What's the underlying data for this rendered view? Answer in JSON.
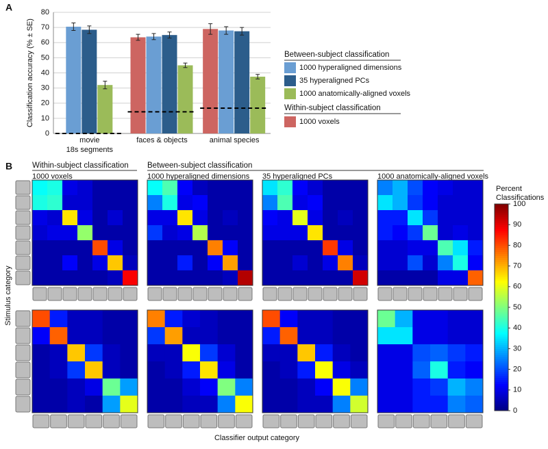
{
  "chart_data": [
    {
      "type": "bar",
      "panel_label": "A",
      "categories": [
        [
          "movie",
          "18s segments"
        ],
        [
          "faces & objects"
        ],
        [
          "animal species"
        ]
      ],
      "ylabel": "Classification accuracy (% ± SE)",
      "ylim": [
        0,
        80
      ],
      "yticks": [
        0,
        10,
        20,
        30,
        40,
        50,
        60,
        70,
        80
      ],
      "legend_titles": [
        "Between-subject classification",
        "Within-subject classification"
      ],
      "series": [
        {
          "name": "1000 voxels",
          "color": "#cd6561",
          "values": [
            null,
            63.5,
            69
          ],
          "errors": [
            null,
            2,
            3.5
          ]
        },
        {
          "name": "1000 hyperaligned dimensions",
          "color": "#6a9ed3",
          "values": [
            70.5,
            64,
            68
          ],
          "errors": [
            2.5,
            2,
            2.5
          ]
        },
        {
          "name": "35 hyperaligned PCs",
          "color": "#2c5d8b",
          "values": [
            68.5,
            65,
            67.5
          ],
          "errors": [
            2.5,
            2,
            2.5
          ]
        },
        {
          "name": "1000 anatomically-aligned voxels",
          "color": "#9bbb59",
          "values": [
            32,
            45,
            37.5
          ],
          "errors": [
            2.5,
            1.5,
            1.5
          ]
        }
      ],
      "chance": [
        0,
        14.3,
        16.7
      ]
    },
    {
      "type": "heatmap",
      "panel_label": "B",
      "colormap": "jet",
      "group_titles": [
        "Within-subject classification",
        "Between-subject classification"
      ],
      "panel_titles": [
        "1000 voxels",
        "1000 hyperaligned dimensions",
        "35 hyperaligned PCs",
        "1000 anatomically-aligned voxels"
      ],
      "xlabel": "Classifier output category",
      "ylabel": "Stimulus category",
      "colorbar": {
        "title": [
          "Percent",
          "Classifications"
        ],
        "lim": [
          0,
          100
        ],
        "ticks": [
          0,
          10,
          20,
          30,
          40,
          50,
          60,
          70,
          80,
          90,
          100
        ]
      },
      "matrices": [
        [
          [
            [
              38,
              40,
              10,
              8,
              4,
              4,
              4
            ],
            [
              40,
              42,
              8,
              8,
              4,
              4,
              4
            ],
            [
              10,
              8,
              65,
              10,
              4,
              8,
              4
            ],
            [
              8,
              10,
              10,
              52,
              4,
              4,
              4
            ],
            [
              4,
              4,
              4,
              4,
              80,
              10,
              4
            ],
            [
              4,
              4,
              12,
              4,
              10,
              68,
              6
            ],
            [
              4,
              4,
              4,
              4,
              4,
              6,
              88
            ]
          ],
          [
            [
              38,
              45,
              12,
              6,
              4,
              4,
              4
            ],
            [
              25,
              40,
              10,
              12,
              4,
              4,
              4
            ],
            [
              10,
              10,
              65,
              10,
              4,
              6,
              4
            ],
            [
              18,
              8,
              10,
              55,
              4,
              4,
              4
            ],
            [
              4,
              4,
              4,
              4,
              75,
              12,
              4
            ],
            [
              4,
              4,
              15,
              4,
              12,
              72,
              4
            ],
            [
              4,
              4,
              4,
              4,
              4,
              6,
              95
            ]
          ],
          [
            [
              35,
              42,
              12,
              8,
              4,
              4,
              4
            ],
            [
              25,
              45,
              10,
              12,
              4,
              4,
              4
            ],
            [
              12,
              10,
              60,
              10,
              4,
              6,
              4
            ],
            [
              10,
              10,
              10,
              65,
              4,
              4,
              4
            ],
            [
              4,
              4,
              4,
              4,
              82,
              10,
              4
            ],
            [
              4,
              4,
              8,
              4,
              10,
              75,
              6
            ],
            [
              4,
              4,
              4,
              4,
              4,
              4,
              92
            ]
          ],
          [
            [
              25,
              30,
              20,
              12,
              10,
              8,
              8
            ],
            [
              35,
              30,
              18,
              12,
              8,
              8,
              8
            ],
            [
              15,
              15,
              35,
              18,
              8,
              8,
              8
            ],
            [
              15,
              12,
              18,
              48,
              8,
              10,
              8
            ],
            [
              8,
              8,
              10,
              10,
              45,
              35,
              15
            ],
            [
              8,
              8,
              20,
              8,
              25,
              40,
              12
            ],
            [
              4,
              4,
              4,
              4,
              10,
              10,
              78
            ]
          ]
        ],
        [
          [
            [
              80,
              15,
              6,
              6,
              4,
              4
            ],
            [
              12,
              78,
              6,
              6,
              4,
              4
            ],
            [
              4,
              6,
              68,
              18,
              6,
              4
            ],
            [
              4,
              6,
              18,
              68,
              6,
              4
            ],
            [
              4,
              4,
              6,
              10,
              48,
              28
            ],
            [
              4,
              4,
              6,
              4,
              28,
              60
            ]
          ],
          [
            [
              75,
              15,
              8,
              6,
              4,
              4
            ],
            [
              18,
              72,
              6,
              6,
              4,
              4
            ],
            [
              6,
              6,
              62,
              18,
              8,
              4
            ],
            [
              4,
              6,
              15,
              65,
              10,
              4
            ],
            [
              4,
              4,
              8,
              12,
              50,
              25
            ],
            [
              4,
              4,
              6,
              6,
              25,
              62
            ]
          ],
          [
            [
              80,
              12,
              6,
              6,
              4,
              4
            ],
            [
              15,
              78,
              6,
              6,
              4,
              4
            ],
            [
              6,
              6,
              68,
              15,
              6,
              4
            ],
            [
              4,
              6,
              15,
              62,
              10,
              6
            ],
            [
              4,
              4,
              6,
              12,
              62,
              25
            ],
            [
              4,
              4,
              6,
              6,
              25,
              58
            ]
          ],
          [
            [
              48,
              30,
              10,
              10,
              8,
              8
            ],
            [
              35,
              35,
              10,
              10,
              8,
              8
            ],
            [
              10,
              10,
              20,
              22,
              18,
              15
            ],
            [
              10,
              10,
              22,
              40,
              15,
              12
            ],
            [
              10,
              10,
              15,
              18,
              30,
              25
            ],
            [
              10,
              10,
              15,
              15,
              25,
              22
            ]
          ]
        ]
      ]
    }
  ]
}
